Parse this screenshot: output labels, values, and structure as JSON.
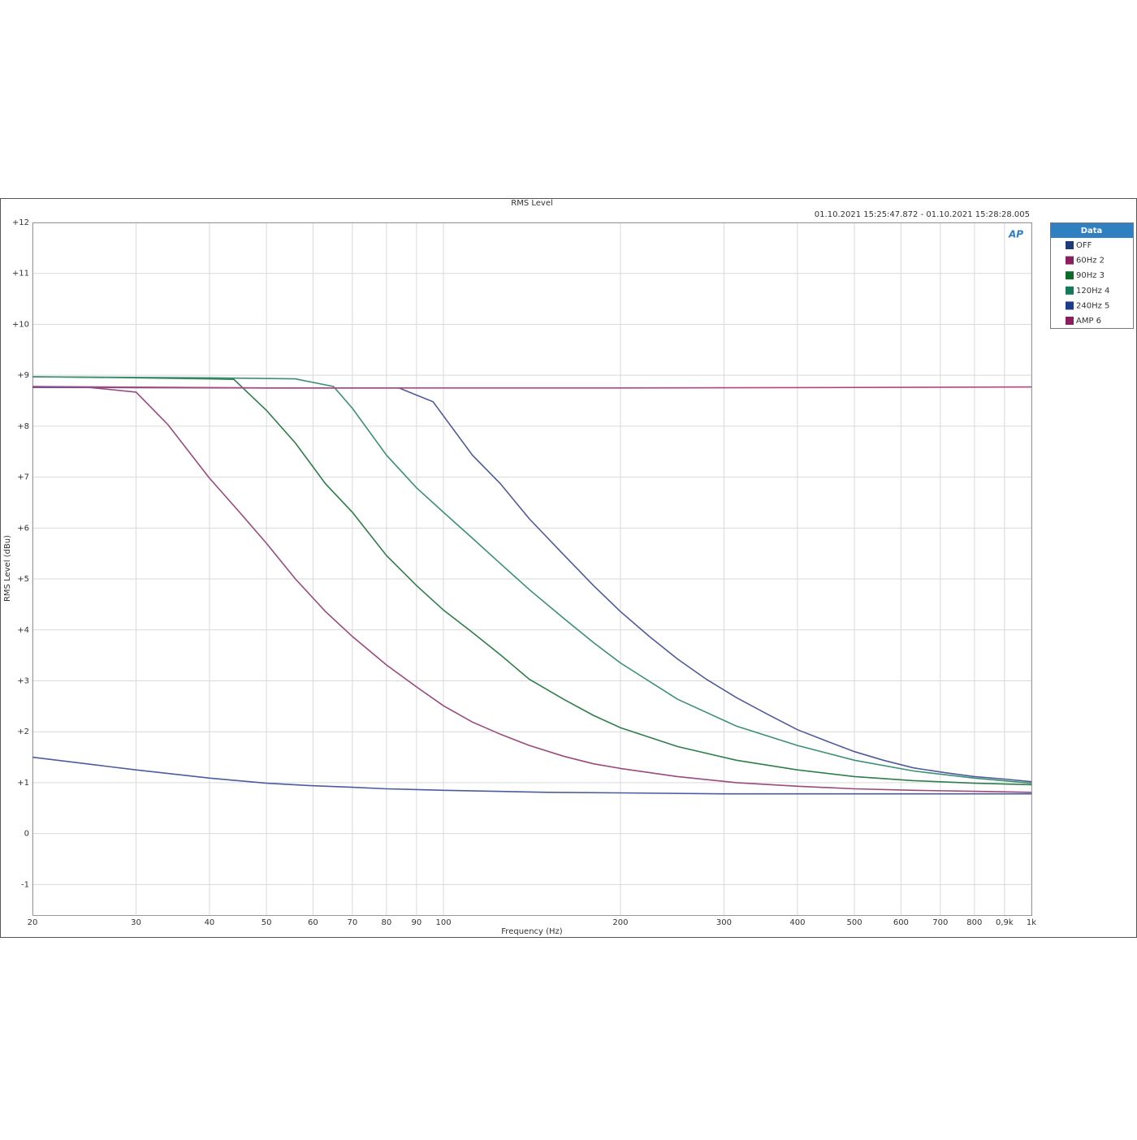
{
  "chart_data": {
    "type": "line",
    "title": "RMS Level",
    "subtitle": "01.10.2021 15:25:47.872 - 01.10.2021 15:28:28.005",
    "logo": "AP",
    "x_label": "Frequency (Hz)",
    "y_label": "RMS Level (dBu)",
    "legend_title": "Data",
    "legend_position": "right",
    "x_scale": "log",
    "grid": true,
    "xlim": [
      20,
      1000
    ],
    "ylim": [
      -1.6,
      12
    ],
    "xticks": [
      20,
      30,
      40,
      50,
      60,
      70,
      80,
      90,
      100,
      200,
      300,
      400,
      500,
      600,
      700,
      800,
      {
        "value": 900,
        "label": "0,9k"
      },
      {
        "value": 1000,
        "label": "1k"
      }
    ],
    "yticks": [
      {
        "value": 12,
        "label": "+12"
      },
      {
        "value": 11,
        "label": "+11"
      },
      {
        "value": 10,
        "label": "+10"
      },
      {
        "value": 9,
        "label": "+9"
      },
      {
        "value": 8,
        "label": "+8"
      },
      {
        "value": 7,
        "label": "+7"
      },
      {
        "value": 6,
        "label": "+6"
      },
      {
        "value": 5,
        "label": "+5"
      },
      {
        "value": 4,
        "label": "+4"
      },
      {
        "value": 3,
        "label": "+3"
      },
      {
        "value": 2,
        "label": "+2"
      },
      {
        "value": 1,
        "label": "+1"
      },
      0,
      -1
    ],
    "series": [
      {
        "name": "OFF",
        "color": "#4b5c9e",
        "swatch": "#1f3a78",
        "x": [
          20,
          30,
          40,
          50,
          60,
          70,
          80,
          100,
          150,
          200,
          300,
          500,
          1000
        ],
        "values": [
          1.5,
          1.25,
          1.09,
          0.99,
          0.94,
          0.91,
          0.88,
          0.85,
          0.81,
          0.8,
          0.78,
          0.78,
          0.78
        ]
      },
      {
        "name": "60Hz 2",
        "color": "#9a4a7c",
        "swatch": "#8a1f5e",
        "x": [
          20,
          25,
          30,
          34,
          40,
          45,
          50,
          56,
          63,
          70,
          80,
          90,
          100,
          112,
          125,
          140,
          160,
          180,
          200,
          250,
          315,
          400,
          500,
          630,
          800,
          1000
        ],
        "values": [
          8.78,
          8.76,
          8.67,
          8.03,
          6.98,
          6.31,
          5.7,
          5.0,
          4.36,
          3.87,
          3.31,
          2.88,
          2.51,
          2.19,
          1.95,
          1.73,
          1.52,
          1.37,
          1.28,
          1.12,
          1.0,
          0.93,
          0.88,
          0.85,
          0.83,
          0.81
        ]
      },
      {
        "name": "90Hz 3",
        "color": "#2f7d4a",
        "swatch": "#0e6a2a",
        "x": [
          20,
          30,
          40,
          44,
          50,
          56,
          63,
          70,
          80,
          90,
          100,
          112,
          125,
          140,
          160,
          180,
          200,
          250,
          315,
          400,
          500,
          630,
          800,
          1000
        ],
        "values": [
          8.97,
          8.95,
          8.93,
          8.92,
          8.31,
          7.67,
          6.87,
          6.31,
          5.46,
          4.87,
          4.39,
          3.95,
          3.51,
          3.03,
          2.64,
          2.32,
          2.08,
          1.71,
          1.44,
          1.25,
          1.12,
          1.04,
          0.99,
          0.96
        ]
      },
      {
        "name": "120Hz 4",
        "color": "#3b9074",
        "swatch": "#16785a",
        "x": [
          20,
          40,
          56,
          65,
          70,
          80,
          90,
          100,
          112,
          125,
          140,
          160,
          180,
          200,
          250,
          315,
          400,
          500,
          630,
          800,
          1000
        ],
        "values": [
          8.97,
          8.95,
          8.93,
          8.78,
          8.35,
          7.43,
          6.79,
          6.31,
          5.8,
          5.3,
          4.79,
          4.23,
          3.75,
          3.35,
          2.64,
          2.11,
          1.73,
          1.44,
          1.23,
          1.09,
          0.99
        ]
      },
      {
        "name": "240Hz 5",
        "color": "#505a9c",
        "swatch": "#1f3a88",
        "x": [
          20,
          50,
          84,
          96,
          112,
          125,
          140,
          160,
          180,
          200,
          224,
          250,
          280,
          315,
          355,
          400,
          450,
          500,
          560,
          630,
          710,
          800,
          900,
          1000
        ],
        "values": [
          8.76,
          8.75,
          8.75,
          8.48,
          7.43,
          6.87,
          6.18,
          5.48,
          4.87,
          4.36,
          3.87,
          3.43,
          3.03,
          2.67,
          2.35,
          2.04,
          1.81,
          1.61,
          1.44,
          1.29,
          1.2,
          1.12,
          1.07,
          1.02
        ]
      },
      {
        "name": "AMP 6",
        "color": "#b0467f",
        "swatch": "#8a1f5e",
        "x": [
          20,
          50,
          200,
          500,
          1000
        ],
        "values": [
          8.78,
          8.75,
          8.75,
          8.76,
          8.77
        ]
      }
    ]
  }
}
